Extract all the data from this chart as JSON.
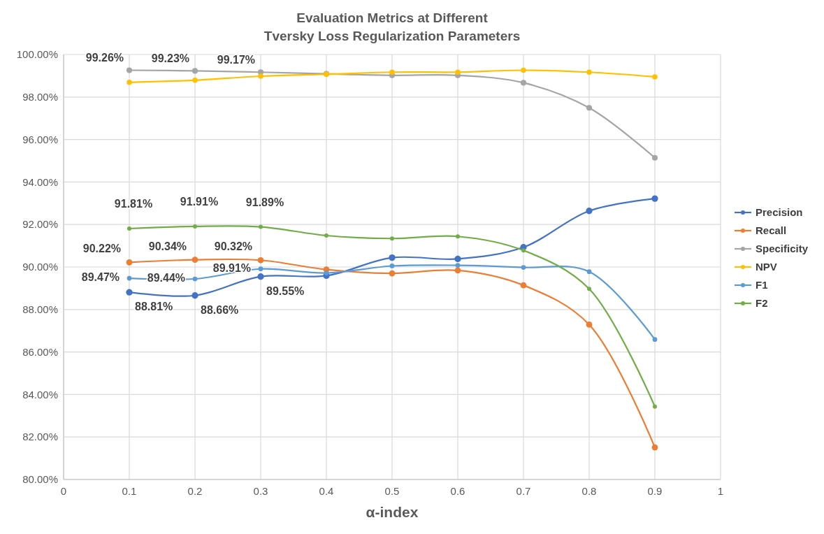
{
  "chart_data": {
    "type": "line",
    "title": "Evaluation Metrics at Different\nTversky Loss Regularization Parameters",
    "xlabel": "α-index",
    "x": [
      0.1,
      0.2,
      0.3,
      0.4,
      0.5,
      0.6,
      0.7,
      0.8,
      0.9
    ],
    "series": [
      {
        "name": "Precision",
        "color": "#4472c4",
        "values": [
          88.81,
          88.66,
          89.55,
          89.59,
          90.44,
          90.38,
          90.93,
          92.64,
          93.22
        ],
        "value_labels": [
          "88.81%",
          "88.66%",
          "89.55%",
          null,
          null,
          null,
          null,
          null,
          null
        ]
      },
      {
        "name": "Recall",
        "color": "#ed7d31",
        "values": [
          90.22,
          90.34,
          90.32,
          89.88,
          89.7,
          89.84,
          89.14,
          87.29,
          81.51
        ],
        "value_labels": [
          "90.22%",
          "90.34%",
          "90.32%",
          null,
          null,
          null,
          null,
          null,
          null
        ]
      },
      {
        "name": "Specificity",
        "color": "#a5a5a5",
        "values": [
          99.26,
          99.23,
          99.17,
          99.09,
          99.02,
          99.02,
          98.67,
          97.49,
          95.14
        ],
        "value_labels": [
          "99.26%",
          "99.23%",
          "99.17%",
          null,
          null,
          null,
          null,
          null,
          null
        ]
      },
      {
        "name": "NPV",
        "color": "#ffc000",
        "values": [
          98.69,
          98.79,
          98.98,
          99.07,
          99.17,
          99.17,
          99.26,
          99.17,
          98.95
        ]
      },
      {
        "name": "F1",
        "color": "#5b9bd5",
        "values": [
          89.47,
          89.44,
          89.91,
          89.72,
          90.05,
          90.08,
          89.98,
          89.78,
          86.59
        ],
        "value_labels": [
          "89.47%",
          "89.44%",
          "89.91%",
          null,
          null,
          null,
          null,
          null,
          null
        ]
      },
      {
        "name": "F2",
        "color": "#70ad47",
        "values": [
          91.81,
          91.91,
          91.89,
          91.48,
          91.34,
          91.44,
          90.78,
          88.97,
          83.43
        ],
        "value_labels": [
          "91.81%",
          "91.91%",
          "91.89%",
          null,
          null,
          null,
          null,
          null,
          null
        ]
      }
    ],
    "xlim": [
      0,
      1
    ],
    "xticks": [
      0,
      0.1,
      0.2,
      0.3,
      0.4,
      0.5,
      0.6,
      0.7,
      0.8,
      0.9,
      1
    ],
    "ylim": [
      80,
      100
    ],
    "yticks": [
      {
        "value": 80,
        "label": "80.00%"
      },
      {
        "value": 82,
        "label": "82.00%"
      },
      {
        "value": 84,
        "label": "84.00%"
      },
      {
        "value": 86,
        "label": "86.00%"
      },
      {
        "value": 88,
        "label": "88.00%"
      },
      {
        "value": 90,
        "label": "90.00%"
      },
      {
        "value": 92,
        "label": "92.00%"
      },
      {
        "value": 94,
        "label": "94.00%"
      },
      {
        "value": 96,
        "label": "96.00%"
      },
      {
        "value": 98,
        "label": "98.00%"
      },
      {
        "value": 100,
        "label": "100.00%"
      }
    ],
    "grid": true,
    "legend": "right",
    "marker": "circle",
    "line_style": "solid"
  }
}
